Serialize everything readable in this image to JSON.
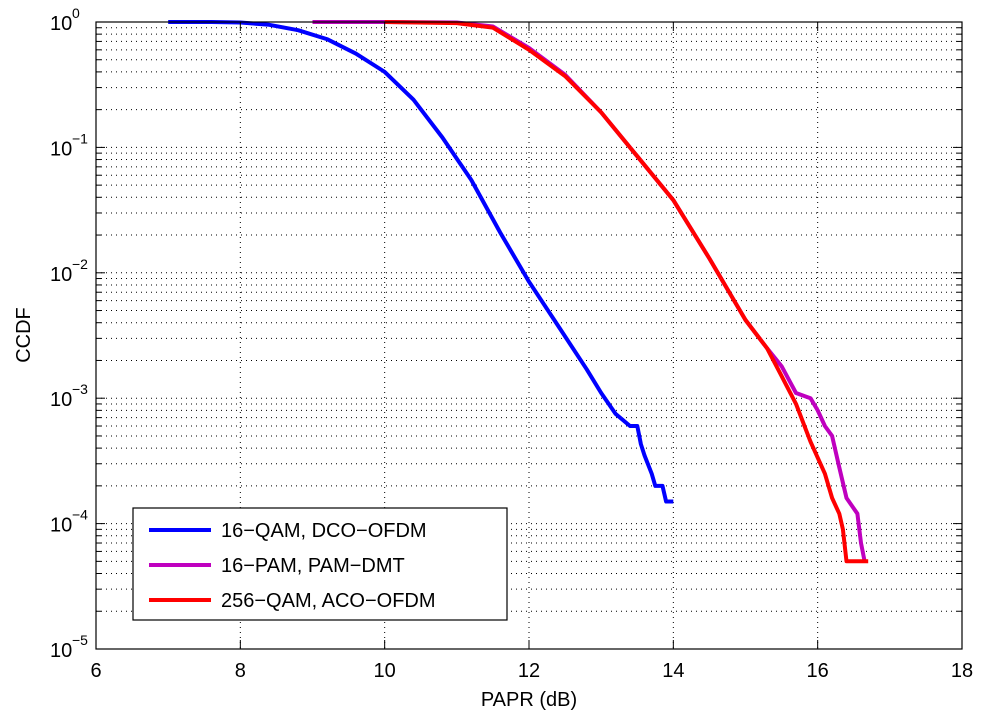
{
  "chart_data": {
    "type": "line",
    "title": "",
    "xlabel": "PAPR (dB)",
    "ylabel": "CCDF",
    "x_scale": "linear",
    "y_scale": "log",
    "xlim": [
      6,
      18
    ],
    "ylim": [
      1e-05,
      1
    ],
    "x_ticks": [
      6,
      8,
      10,
      12,
      14,
      16,
      18
    ],
    "y_ticks": [
      {
        "value": 1e-05,
        "base": "10",
        "exp": "−5"
      },
      {
        "value": 0.0001,
        "base": "10",
        "exp": "−4"
      },
      {
        "value": 0.001,
        "base": "10",
        "exp": "−3"
      },
      {
        "value": 0.01,
        "base": "10",
        "exp": "−2"
      },
      {
        "value": 0.1,
        "base": "10",
        "exp": "−1"
      },
      {
        "value": 1,
        "base": "10",
        "exp": "0"
      }
    ],
    "grid": true,
    "grid_style": "dotted",
    "legend_position": "bottom-left",
    "series": [
      {
        "name": "16−QAM, DCO−OFDM",
        "color": "#0000ff",
        "points": [
          [
            7.0,
            1.0
          ],
          [
            7.6,
            1.0
          ],
          [
            8.0,
            0.99
          ],
          [
            8.4,
            0.95
          ],
          [
            8.8,
            0.86
          ],
          [
            9.2,
            0.73
          ],
          [
            9.6,
            0.56
          ],
          [
            10.0,
            0.4
          ],
          [
            10.4,
            0.24
          ],
          [
            10.8,
            0.12
          ],
          [
            11.2,
            0.055
          ],
          [
            11.6,
            0.021
          ],
          [
            12.0,
            0.0085
          ],
          [
            12.4,
            0.0038
          ],
          [
            12.8,
            0.0017
          ],
          [
            13.0,
            0.0011
          ],
          [
            13.2,
            0.00075
          ],
          [
            13.4,
            0.0006
          ],
          [
            13.5,
            0.0006
          ],
          [
            13.55,
            0.00043
          ],
          [
            13.6,
            0.00035
          ],
          [
            13.7,
            0.00025
          ],
          [
            13.75,
            0.0002
          ],
          [
            13.85,
            0.0002
          ],
          [
            13.9,
            0.00015
          ],
          [
            14.0,
            0.00015
          ]
        ]
      },
      {
        "name": "16−PAM, PAM−DMT",
        "color": "#bf00bf",
        "points": [
          [
            9.0,
            1.0
          ],
          [
            10.0,
            1.0
          ],
          [
            11.0,
            0.99
          ],
          [
            11.5,
            0.92
          ],
          [
            12.0,
            0.62
          ],
          [
            12.5,
            0.38
          ],
          [
            13.0,
            0.19
          ],
          [
            13.5,
            0.085
          ],
          [
            14.0,
            0.038
          ],
          [
            14.5,
            0.013
          ],
          [
            15.0,
            0.0042
          ],
          [
            15.3,
            0.0025
          ],
          [
            15.5,
            0.0018
          ],
          [
            15.7,
            0.0011
          ],
          [
            15.9,
            0.001
          ],
          [
            16.0,
            0.0008
          ],
          [
            16.1,
            0.0006
          ],
          [
            16.2,
            0.0005
          ],
          [
            16.3,
            0.00028
          ],
          [
            16.4,
            0.00016
          ],
          [
            16.55,
            0.00012
          ],
          [
            16.6,
            7e-05
          ],
          [
            16.65,
            5e-05
          ]
        ]
      },
      {
        "name": "256−QAM, ACO−OFDM",
        "color": "#ff0000",
        "points": [
          [
            10.0,
            1.0
          ],
          [
            11.0,
            0.98
          ],
          [
            11.5,
            0.9
          ],
          [
            12.0,
            0.6
          ],
          [
            12.5,
            0.37
          ],
          [
            13.0,
            0.19
          ],
          [
            13.5,
            0.085
          ],
          [
            14.0,
            0.038
          ],
          [
            14.5,
            0.013
          ],
          [
            15.0,
            0.0042
          ],
          [
            15.3,
            0.0025
          ],
          [
            15.5,
            0.0015
          ],
          [
            15.7,
            0.0009
          ],
          [
            15.9,
            0.00045
          ],
          [
            16.1,
            0.00025
          ],
          [
            16.2,
            0.00016
          ],
          [
            16.3,
            0.00012
          ],
          [
            16.35,
            9e-05
          ],
          [
            16.4,
            5e-05
          ],
          [
            16.7,
            5e-05
          ]
        ]
      }
    ]
  }
}
